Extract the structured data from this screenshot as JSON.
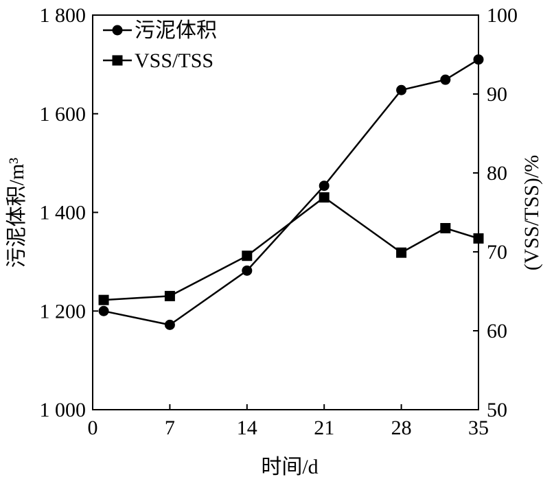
{
  "chart_data": {
    "type": "line",
    "x": [
      1,
      7,
      14,
      21,
      28,
      32,
      35
    ],
    "xlabel": "时间/d",
    "xlim": [
      0,
      35
    ],
    "x_ticks": [
      "0",
      "7",
      "14",
      "21",
      "28",
      "35"
    ],
    "ylabel_left": "污泥体积/m³",
    "ylim_left": [
      1000,
      1800
    ],
    "y_ticks_left": [
      "1 000",
      "1 200",
      "1 400",
      "1 600",
      "1 800"
    ],
    "ylabel_right": "(VSS/TSS)/%",
    "ylim_right": [
      50,
      100
    ],
    "y_ticks_right": [
      "50",
      "60",
      "70",
      "80",
      "90",
      "100"
    ],
    "series": [
      {
        "name": "污泥体积",
        "axis": "left",
        "marker": "circle",
        "values": [
          1200,
          1172,
          1282,
          1454,
          1648,
          1669,
          1710
        ]
      },
      {
        "name": "VSS/TSS",
        "axis": "right",
        "marker": "square",
        "values": [
          63.9,
          64.4,
          69.5,
          76.9,
          69.9,
          73.0,
          71.7
        ]
      }
    ],
    "legend_position": "top-left",
    "grid": false,
    "color": "#000000"
  }
}
